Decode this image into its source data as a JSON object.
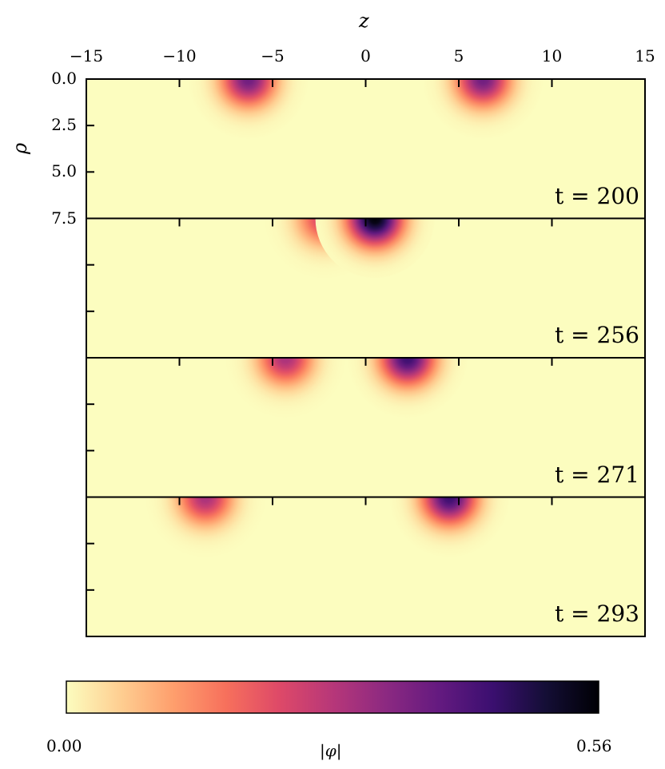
{
  "chart_data": {
    "type": "heatmap",
    "colormap": "magma_r",
    "xlabel": "z",
    "ylabel": "ρ",
    "xlim": [
      -15,
      15
    ],
    "ylim": [
      0,
      7.5
    ],
    "xticks": [
      "−15",
      "−10",
      "−5",
      "0",
      "5",
      "10",
      "15"
    ],
    "xtick_values": [
      -15,
      -10,
      -5,
      0,
      5,
      10,
      15
    ],
    "yticks": [
      "0.0",
      "2.5",
      "5.0",
      "7.5"
    ],
    "ytick_values": [
      0,
      2.5,
      5,
      7.5
    ],
    "panels": [
      {
        "label": "t = 200",
        "blobs": [
          {
            "z": -6.3,
            "rho": 0,
            "peak": 0.38
          },
          {
            "z": 6.3,
            "rho": 0,
            "peak": 0.38
          }
        ]
      },
      {
        "label": "t = 256",
        "blobs": [
          {
            "z": -2.2,
            "rho": 0,
            "peak": 0.25
          },
          {
            "z": 0.5,
            "rho": 0,
            "peak": 0.56
          }
        ]
      },
      {
        "label": "t = 271",
        "blobs": [
          {
            "z": -4.3,
            "rho": 0,
            "peak": 0.3
          },
          {
            "z": 2.25,
            "rho": 0,
            "peak": 0.45
          }
        ]
      },
      {
        "label": "t = 293",
        "blobs": [
          {
            "z": -8.6,
            "rho": 0,
            "peak": 0.3
          },
          {
            "z": 4.5,
            "rho": 0,
            "peak": 0.45
          }
        ]
      }
    ],
    "colorbar": {
      "label": "|φ|",
      "min": 0.0,
      "max": 0.56,
      "min_label": "0.00",
      "max_label": "0.56"
    }
  }
}
